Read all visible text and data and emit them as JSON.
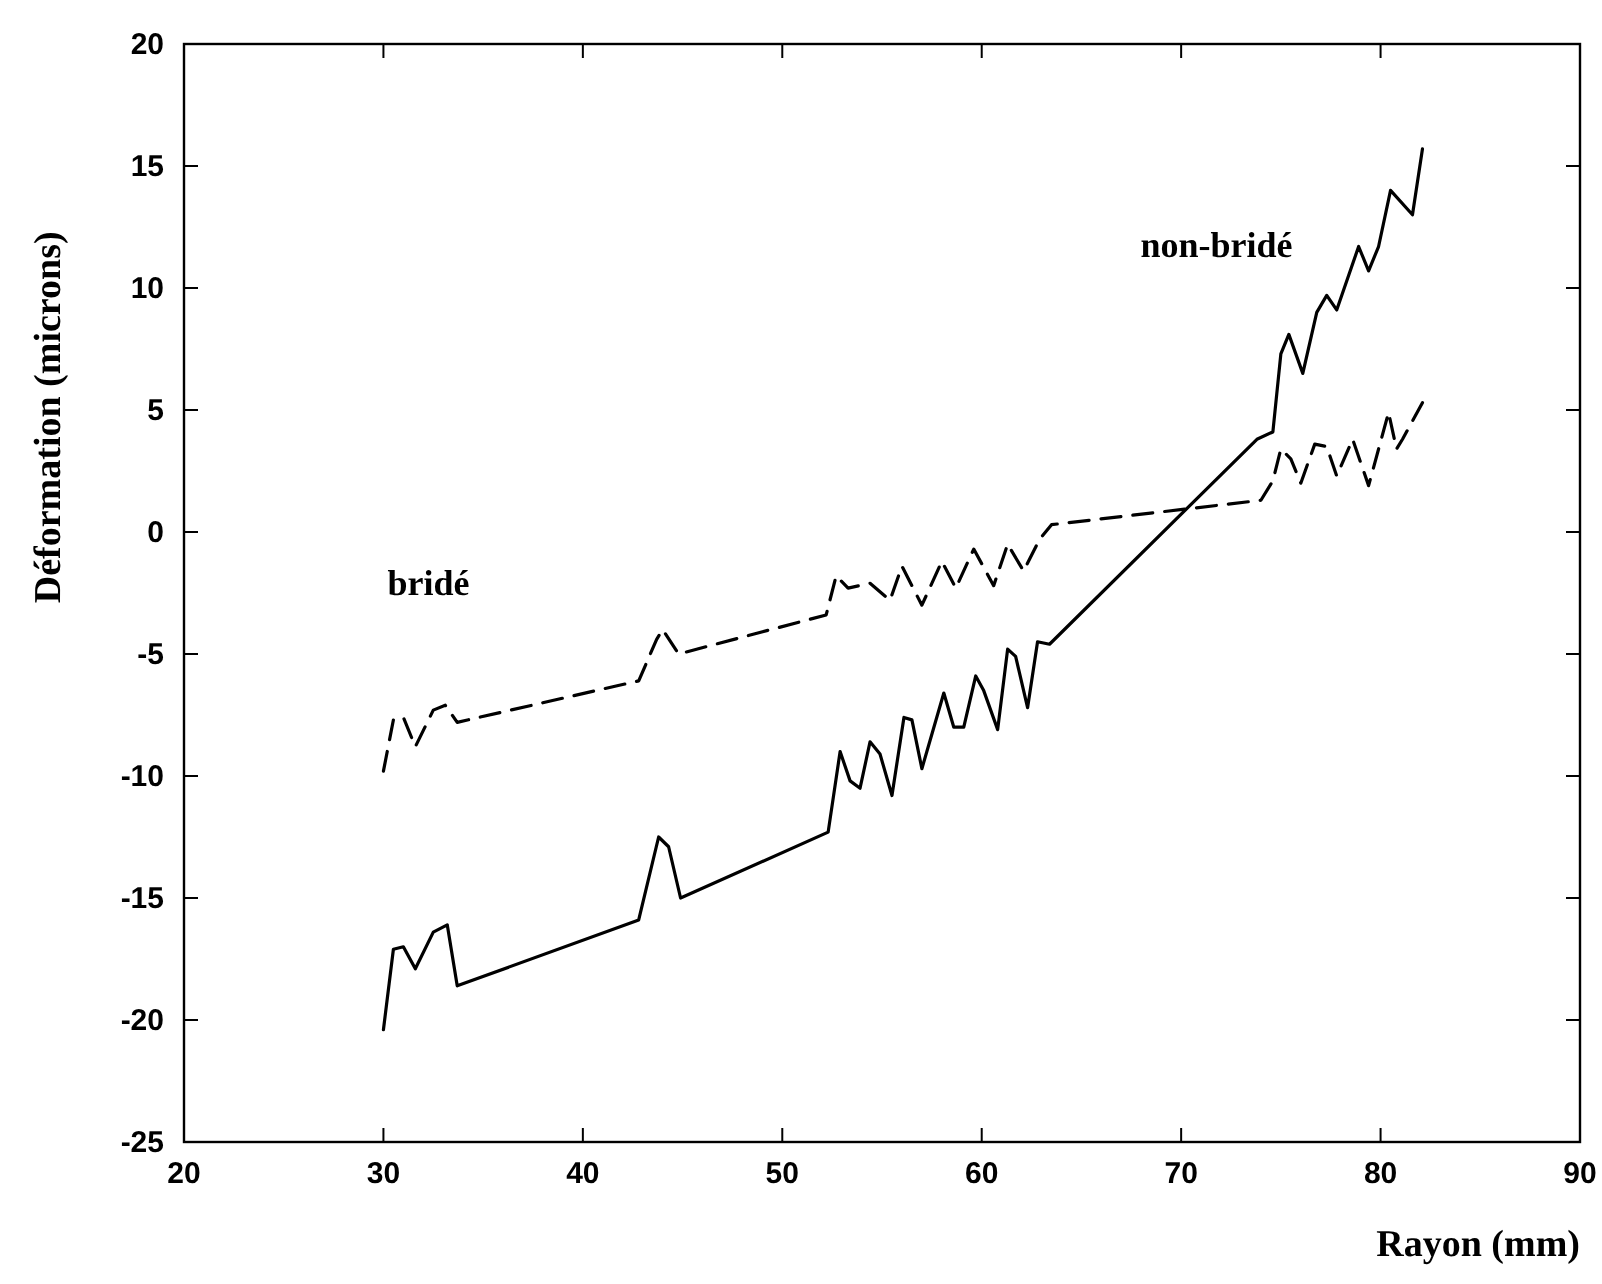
{
  "chart_data": {
    "type": "line",
    "xlabel": "Rayon (mm)",
    "ylabel": "Déformation (microns)",
    "xlim": [
      20,
      90
    ],
    "ylim": [
      -25,
      20
    ],
    "xticks": [
      20,
      30,
      40,
      50,
      60,
      70,
      80,
      90
    ],
    "yticks": [
      -25,
      -20,
      -15,
      -10,
      -5,
      0,
      5,
      10,
      15,
      20
    ],
    "grid": false,
    "legend": false,
    "marker": "none",
    "series": [
      {
        "name": "non-bridé",
        "color": "#000000",
        "line_style": "solid",
        "x": [
          30.0,
          30.5,
          31.0,
          31.6,
          32.5,
          33.2,
          33.7,
          42.8,
          43.8,
          44.3,
          44.9,
          52.3,
          52.9,
          53.4,
          53.9,
          54.4,
          54.9,
          55.5,
          56.1,
          56.5,
          57.0,
          58.1,
          58.6,
          59.1,
          59.7,
          60.1,
          60.8,
          61.3,
          61.7,
          62.3,
          62.8,
          63.4,
          73.8,
          74.6,
          75.0,
          75.4,
          76.1,
          76.8,
          77.3,
          77.8,
          78.9,
          79.4,
          79.9,
          80.5,
          81.6,
          82.1
        ],
        "values": [
          -20.4,
          -17.1,
          -17.0,
          -17.9,
          -16.4,
          -16.1,
          -18.6,
          -15.9,
          -12.5,
          -12.9,
          -15.0,
          -12.3,
          -9.0,
          -10.2,
          -10.5,
          -8.6,
          -9.1,
          -10.8,
          -7.6,
          -7.7,
          -9.7,
          -6.6,
          -8.0,
          -8.0,
          -5.9,
          -6.5,
          -8.1,
          -4.8,
          -5.1,
          -7.2,
          -4.5,
          -4.6,
          3.8,
          4.1,
          7.3,
          8.1,
          6.5,
          9.0,
          9.7,
          9.1,
          11.7,
          10.7,
          11.7,
          14.0,
          13.0,
          15.7
        ]
      },
      {
        "name": "bridé",
        "color": "#000000",
        "line_style": "dashed",
        "x": [
          30.0,
          30.5,
          31.0,
          31.6,
          32.5,
          33.1,
          33.7,
          42.8,
          43.7,
          44.0,
          44.8,
          52.2,
          52.7,
          53.3,
          54.4,
          55.4,
          56.0,
          57.0,
          58.0,
          58.7,
          59.6,
          60.6,
          61.3,
          62.1,
          62.9,
          63.5,
          74.0,
          74.6,
          75.0,
          75.5,
          76.0,
          76.7,
          77.3,
          77.8,
          78.6,
          79.4,
          80.4,
          80.8,
          81.1,
          82.1
        ],
        "values": [
          -9.8,
          -7.7,
          -7.6,
          -8.8,
          -7.3,
          -7.1,
          -7.8,
          -6.1,
          -4.4,
          -4.0,
          -5.0,
          -3.4,
          -1.8,
          -2.3,
          -2.1,
          -2.8,
          -1.4,
          -3.0,
          -1.2,
          -2.3,
          -0.7,
          -2.2,
          -0.5,
          -1.6,
          -0.3,
          0.3,
          1.3,
          2.1,
          3.4,
          3.0,
          2.0,
          3.6,
          3.5,
          2.3,
          3.8,
          1.9,
          4.9,
          3.4,
          3.8,
          5.3
        ]
      }
    ]
  }
}
